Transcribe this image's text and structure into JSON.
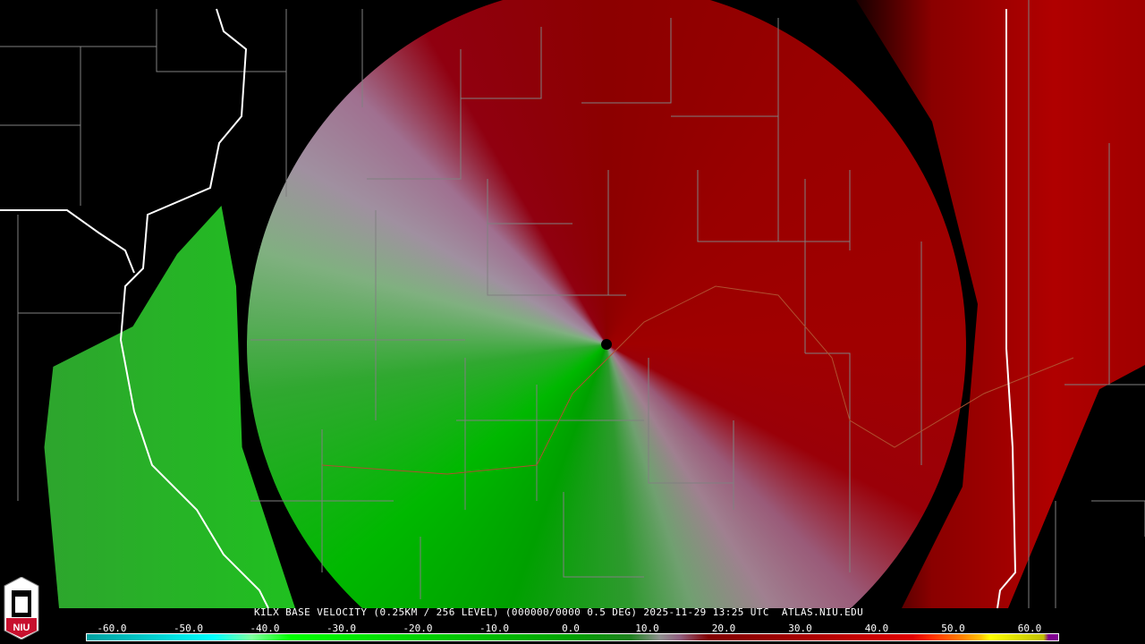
{
  "product": {
    "caption": "KILX BASE VELOCITY (0.25KM / 256 LEVEL) (000000/0000 0.5 DEG) 2025-11-29 13:25 UTC  ATLAS.NIU.EDU",
    "logo_text": "NIU"
  },
  "legend": {
    "labels": [
      "-60.0",
      "-50.0",
      "-40.0",
      "-30.0",
      "-20.0",
      "-10.0",
      "0.0",
      "10.0",
      "20.0",
      "30.0",
      "40.0",
      "50.0",
      "60.0"
    ],
    "colors": {
      "inbound_max": "#00ffff",
      "inbound": "#00c000",
      "near_zero": "#909090",
      "outbound": "#a00000",
      "outbound_max": "#ffff00",
      "range_folded": "#800090"
    }
  }
}
